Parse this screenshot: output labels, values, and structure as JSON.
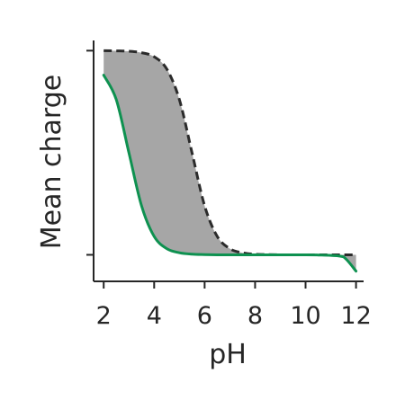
{
  "chart_data": {
    "type": "line",
    "title": "",
    "xlabel": "pH",
    "ylabel": "Mean charge",
    "xlim": [
      1.6,
      12.3
    ],
    "ylim": [
      -0.13,
      1.05
    ],
    "x_ticks": [
      2,
      4,
      6,
      8,
      10,
      12
    ],
    "x_tick_labels": [
      "2",
      "4",
      "6",
      "8",
      "10",
      "12"
    ],
    "y_ticks": [
      0,
      1
    ],
    "y_tick_labels": [],
    "grid": false,
    "legend": "none",
    "x": [
      2.0,
      2.5,
      3.0,
      3.5,
      4.0,
      4.5,
      5.0,
      5.5,
      6.0,
      6.5,
      7.0,
      7.5,
      8.0,
      8.5,
      9.0,
      9.5,
      10.0,
      10.5,
      11.0,
      11.5,
      12.0
    ],
    "series": [
      {
        "style": "dashed",
        "color": "#2b2b2b",
        "values": [
          1.0,
          0.999,
          0.997,
          0.99,
          0.97,
          0.91,
          0.76,
          0.5,
          0.24,
          0.09,
          0.03,
          0.01,
          0.003,
          0.001,
          0.0,
          0.0,
          0.0,
          0.0,
          0.0,
          0.0,
          0.0
        ]
      },
      {
        "style": "solid",
        "color": "#0e9150",
        "values": [
          0.88,
          0.76,
          0.5,
          0.24,
          0.09,
          0.03,
          0.01,
          0.003,
          0.001,
          0.0,
          0.0,
          0.0,
          0.0,
          0.0,
          0.0,
          0.0,
          0.0,
          -0.001,
          -0.003,
          -0.01,
          -0.08
        ]
      }
    ],
    "fill_between": {
      "color": "#a6a6a6"
    }
  }
}
